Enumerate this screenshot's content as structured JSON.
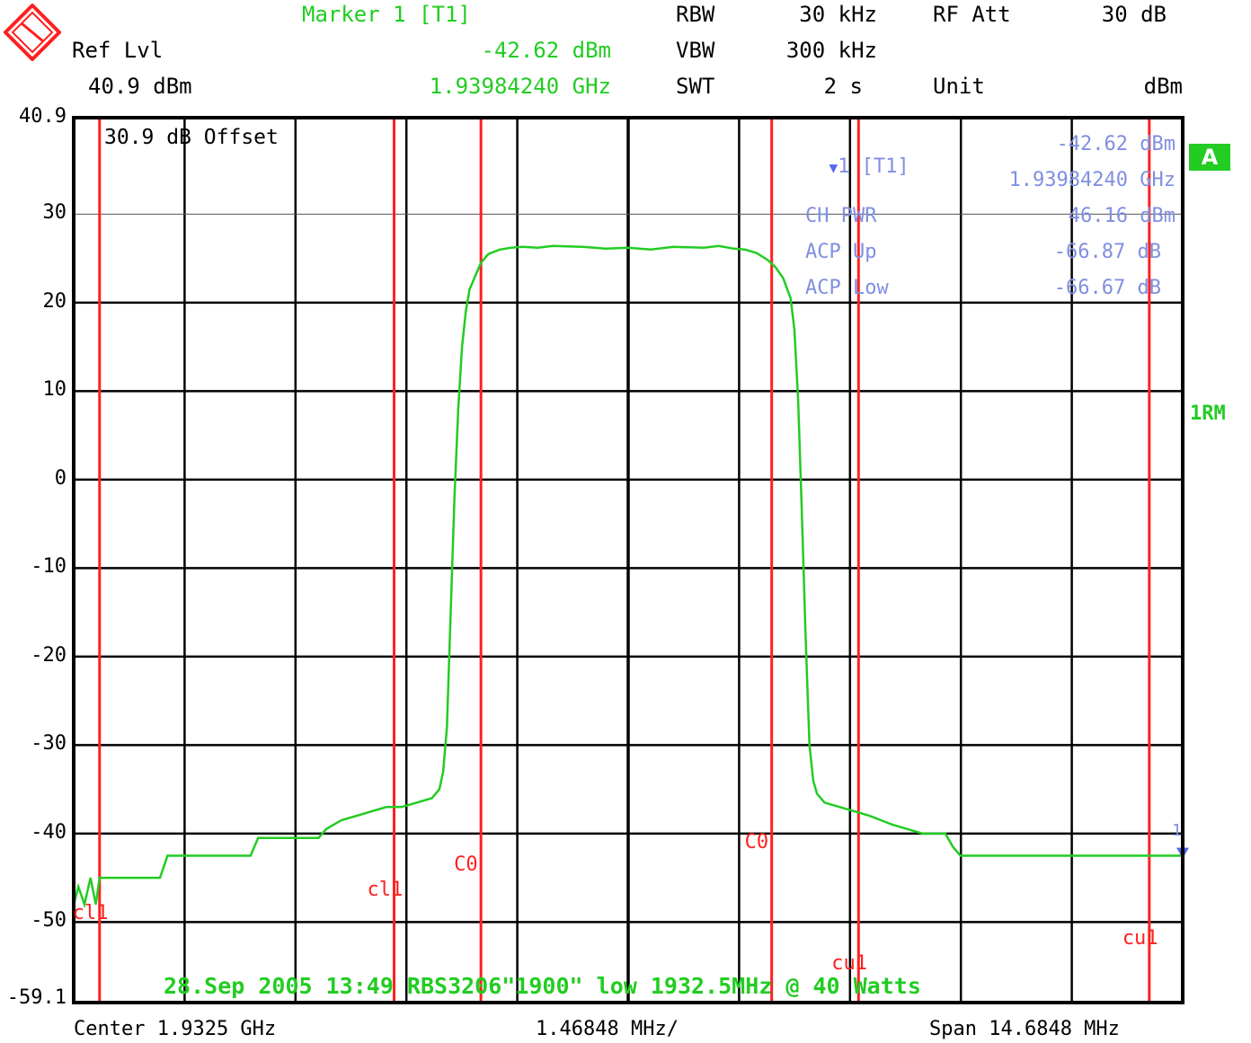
{
  "header": {
    "marker_title": "Marker 1 [T1]",
    "marker_level": "-42.62 dBm",
    "marker_freq": "1.93984240 GHz",
    "ref_lvl_label": "Ref Lvl",
    "ref_lvl_value": "40.9 dBm",
    "rbw_label": "RBW",
    "rbw_value": "30 kHz",
    "vbw_label": "VBW",
    "vbw_value": "300 kHz",
    "swt_label": "SWT",
    "swt_value": "2 s",
    "rf_att_label": "RF Att",
    "rf_att_value": "30 dB",
    "unit_label": "Unit",
    "unit_value": "dBm"
  },
  "screen": {
    "offset_text": "30.9 dB Offset",
    "badge": "A",
    "trace_label": "1RM",
    "date_line": "28.Sep 2005 13:49 RBS3206\"1900\" low 1932.5MHz @ 40 Watts"
  },
  "marker_info": {
    "marker_line_label": "1 [T1]",
    "marker_line_value": "-42.62 dBm",
    "marker_freq": "1.93984240 GHz",
    "ch_pwr_label": "CH PWR",
    "ch_pwr_value": "46.16 dBm",
    "acp_up_label": "ACP Up",
    "acp_up_value": "-66.87 dB",
    "acp_low_label": "ACP Low",
    "acp_low_value": "-66.67 dB",
    "marker_symbol_label": "1"
  },
  "footer": {
    "center": "Center 1.9325 GHz",
    "per_div": "1.46848 MHz/",
    "span": "Span 14.6848 MHz"
  },
  "colors": {
    "trace": "#22cc22",
    "grid": "#000000",
    "limit_lines": "#ff2020",
    "marker_text": "#7f8fe0"
  },
  "chart_data": {
    "type": "line",
    "x_unit": "MHz offset from center",
    "xlim": [
      -7.3424,
      7.3424
    ],
    "ylim": [
      -59.1,
      40.9
    ],
    "y_ticks": [
      {
        "value": 40.9,
        "label": "40.9"
      },
      {
        "value": 30,
        "label": "30"
      },
      {
        "value": 20,
        "label": "20"
      },
      {
        "value": 10,
        "label": "10"
      },
      {
        "value": 0,
        "label": "0"
      },
      {
        "value": -10,
        "label": "-10"
      },
      {
        "value": -20,
        "label": "-20"
      },
      {
        "value": -30,
        "label": "-30"
      },
      {
        "value": -40,
        "label": "-40"
      },
      {
        "value": -50,
        "label": "-50"
      },
      {
        "value": -59.1,
        "label": "-59.1"
      }
    ],
    "x_divisions": 10,
    "reference_line": 30,
    "limit_lines": [
      {
        "x": -7.0,
        "label": "cl1"
      },
      {
        "x": -3.1,
        "label": "cl1"
      },
      {
        "x": -1.95,
        "label": "C0"
      },
      {
        "x": 1.9,
        "label": "C0"
      },
      {
        "x": 3.05,
        "label": "cu1"
      },
      {
        "x": 6.9,
        "label": "cu1"
      }
    ],
    "marker": {
      "x": 7.3424,
      "y": -42.62
    },
    "series": [
      {
        "x": [
          -7.34,
          -7.28,
          -7.2,
          -7.12,
          -7.05,
          -7.0,
          -6.6,
          -6.2,
          -6.1,
          -5.9,
          -5.6,
          -5.0,
          -4.9,
          -4.7,
          -4.4,
          -4.1,
          -4.0,
          -3.8,
          -3.6,
          -3.4,
          -3.2,
          -3.0,
          -2.8,
          -2.6,
          -2.5,
          -2.45,
          -2.4,
          -2.35,
          -2.3,
          -2.25,
          -2.2,
          -2.15,
          -2.1,
          -2.0,
          -1.95,
          -1.85,
          -1.7,
          -1.55,
          -1.4,
          -1.2,
          -1.0,
          -0.6,
          -0.3,
          0.0,
          0.3,
          0.6,
          1.0,
          1.2,
          1.4,
          1.55,
          1.7,
          1.85,
          1.95,
          2.05,
          2.15,
          2.2,
          2.25,
          2.3,
          2.35,
          2.4,
          2.45,
          2.5,
          2.6,
          2.8,
          3.0,
          3.2,
          3.5,
          3.7,
          3.9,
          4.2,
          4.3,
          4.4,
          4.5,
          5.0,
          6.0,
          7.34
        ],
        "y": [
          -48,
          -46,
          -48,
          -45,
          -48,
          -45,
          -45,
          -45,
          -42.5,
          -42.5,
          -42.5,
          -42.5,
          -40.5,
          -40.5,
          -40.5,
          -40.5,
          -39.5,
          -38.5,
          -38,
          -37.5,
          -37,
          -37,
          -36.5,
          -36,
          -35,
          -33,
          -28,
          -15,
          -2,
          8,
          15,
          19,
          21.5,
          23.5,
          24.5,
          25.5,
          26,
          26.2,
          26.3,
          26.2,
          26.4,
          26.3,
          26.1,
          26.2,
          26.0,
          26.3,
          26.2,
          26.4,
          26.1,
          26.0,
          25.6,
          24.8,
          24.0,
          22.8,
          20.5,
          17,
          9,
          -4,
          -18,
          -30,
          -34,
          -35.5,
          -36.5,
          -37,
          -37.5,
          -38,
          -39,
          -39.5,
          -40,
          -40,
          -41.5,
          -42.5,
          -42.5,
          -42.5,
          -42.5,
          -42.5
        ]
      }
    ]
  }
}
